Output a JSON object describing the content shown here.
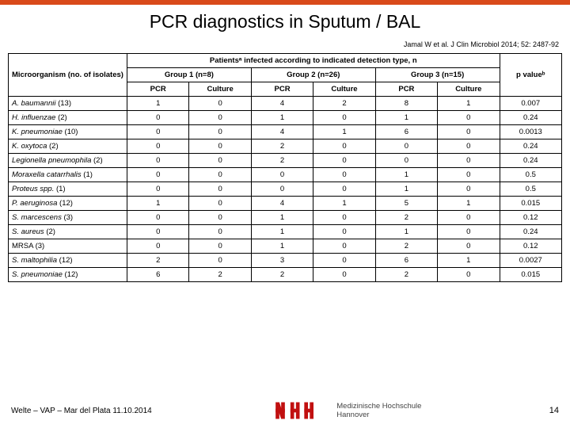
{
  "accent_color": "#d94a1a",
  "title": "PCR diagnostics in Sputum / BAL",
  "citation": "Jamal W et al. J Clin Microbiol 2014; 52: 2487-92",
  "table": {
    "header_left": "Microorganism (no. of isolates)",
    "super_header": "Patientsᵃ infected according to indicated detection type, n",
    "group_headers": [
      "Group 1 (n=8)",
      "Group 2 (n=26)",
      "Group 3 (n=15)"
    ],
    "sub_headers": [
      "PCR",
      "Culture",
      "PCR",
      "Culture",
      "PCR",
      "Culture"
    ],
    "pvalue_header": "p valueᵇ",
    "rows": [
      {
        "name": "A. baumannii",
        "iso": "(13)",
        "v": [
          "1",
          "0",
          "4",
          "2",
          "8",
          "1"
        ],
        "p": "0.007"
      },
      {
        "name": "H. influenzae",
        "iso": "(2)",
        "v": [
          "0",
          "0",
          "1",
          "0",
          "1",
          "0"
        ],
        "p": "0.24"
      },
      {
        "name": "K. pneumoniae",
        "iso": "(10)",
        "v": [
          "0",
          "0",
          "4",
          "1",
          "6",
          "0"
        ],
        "p": "0.0013"
      },
      {
        "name": "K. oxytoca",
        "iso": "(2)",
        "v": [
          "0",
          "0",
          "2",
          "0",
          "0",
          "0"
        ],
        "p": "0.24"
      },
      {
        "name": "Legionella pneumophila",
        "iso": "(2)",
        "v": [
          "0",
          "0",
          "2",
          "0",
          "0",
          "0"
        ],
        "p": "0.24"
      },
      {
        "name": "Moraxella catarrhalis",
        "iso": "(1)",
        "v": [
          "0",
          "0",
          "0",
          "0",
          "1",
          "0"
        ],
        "p": "0.5"
      },
      {
        "name": "Proteus",
        "extra": " spp.",
        "iso": "(1)",
        "v": [
          "0",
          "0",
          "0",
          "0",
          "1",
          "0"
        ],
        "p": "0.5"
      },
      {
        "name": "P. aeruginosa",
        "iso": "(12)",
        "v": [
          "1",
          "0",
          "4",
          "1",
          "5",
          "1"
        ],
        "p": "0.015"
      },
      {
        "name": "S. marcescens",
        "iso": "(3)",
        "v": [
          "0",
          "0",
          "1",
          "0",
          "2",
          "0"
        ],
        "p": "0.12"
      },
      {
        "name": "S. aureus",
        "iso": "(2)",
        "v": [
          "0",
          "0",
          "1",
          "0",
          "1",
          "0"
        ],
        "p": "0.24"
      },
      {
        "name": "MRSA",
        "iso": "(3)",
        "plain": true,
        "v": [
          "0",
          "0",
          "1",
          "0",
          "2",
          "0"
        ],
        "p": "0.12"
      },
      {
        "name": "S. maltophilia",
        "iso": "(12)",
        "v": [
          "2",
          "0",
          "3",
          "0",
          "6",
          "1"
        ],
        "p": "0.0027"
      },
      {
        "name": "S. pneumoniae",
        "iso": "(12)",
        "v": [
          "6",
          "2",
          "2",
          "0",
          "2",
          "0"
        ],
        "p": "0.015"
      }
    ]
  },
  "footer": {
    "left": "Welte – VAP – Mar del Plata 11.10.2014",
    "logo_line1": "Medizinische Hochschule",
    "logo_line2": "Hannover",
    "page": "14"
  }
}
